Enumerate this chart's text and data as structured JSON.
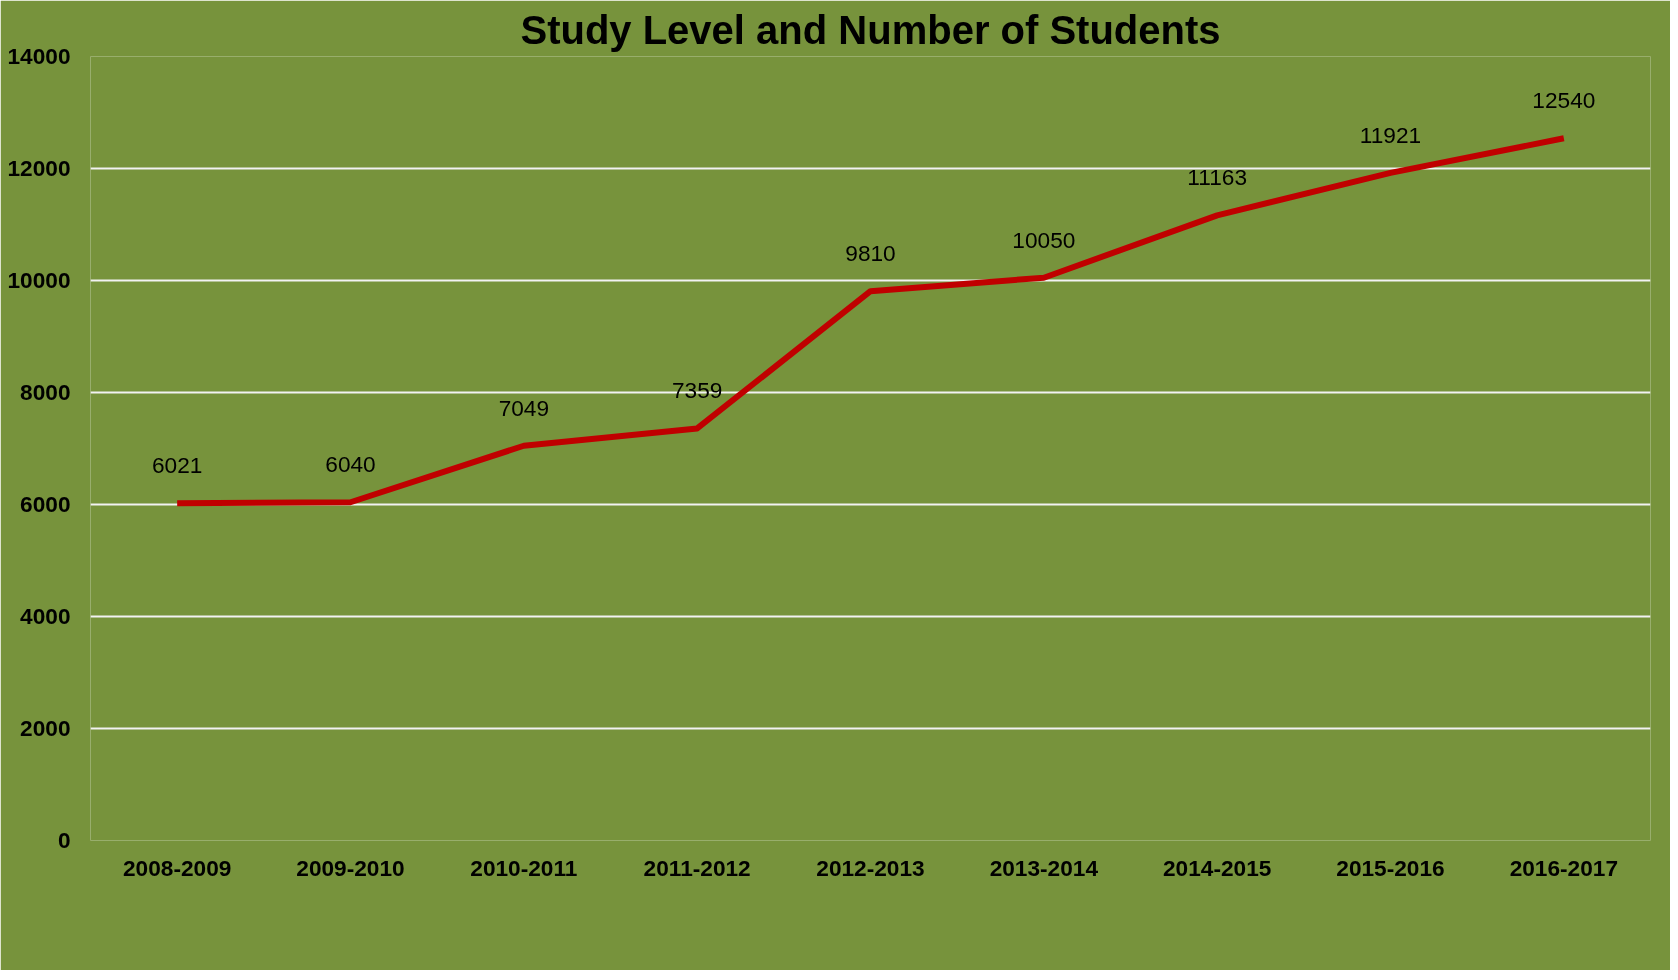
{
  "chart_data": {
    "type": "line",
    "title": "Study Level and Number of Students",
    "categories": [
      "2008-2009",
      "2009-2010",
      "2010-2011",
      "2011-2012",
      "2012-2013",
      "2013-2014",
      "2014-2015",
      "2015-2016",
      "2016-2017"
    ],
    "series": [
      {
        "color": "#c00000",
        "values": [
          6021,
          6040,
          7049,
          7359,
          9810,
          10050,
          11163,
          11921,
          12540
        ]
      }
    ],
    "ylim": [
      0,
      14000
    ],
    "yticks": [
      0,
      2000,
      4000,
      6000,
      8000,
      10000,
      12000,
      14000
    ],
    "grid": "y",
    "data_labels": true,
    "marker": "none",
    "line_style": "solid"
  }
}
